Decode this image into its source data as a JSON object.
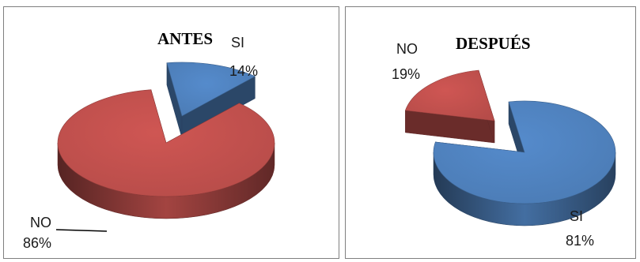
{
  "chart_data": [
    {
      "type": "pie",
      "title": "ANTES",
      "style": "3d exploded",
      "categories": [
        "SI",
        "NO"
      ],
      "values": [
        14,
        86
      ],
      "value_labels": [
        "14%",
        "86%"
      ],
      "colors": [
        "#4f81bd",
        "#c0504d"
      ],
      "legend": "none"
    },
    {
      "type": "pie",
      "title": "DESPUÉS",
      "style": "3d exploded",
      "categories": [
        "SI",
        "NO"
      ],
      "values": [
        81,
        19
      ],
      "value_labels": [
        "81%",
        "19%"
      ],
      "colors": [
        "#4f81bd",
        "#c0504d"
      ],
      "legend": "none"
    }
  ]
}
